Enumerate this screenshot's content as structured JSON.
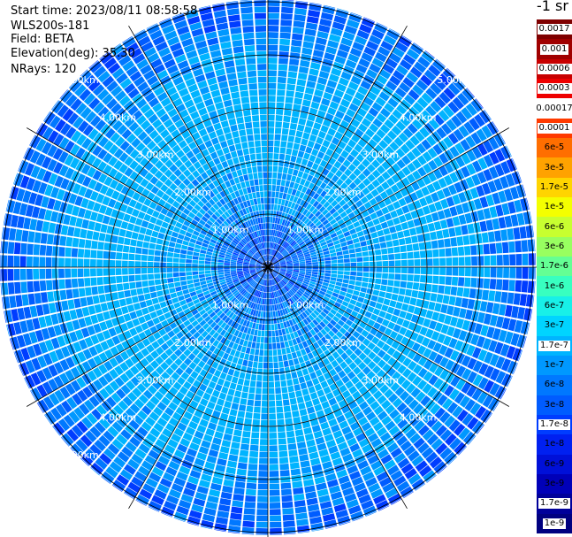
{
  "info": {
    "start_time": "Start time: 2023/08/11 08:58:58",
    "instrument": "WLS200s-181",
    "field": "Field: BETA",
    "elevation": "Elevation(deg): 35.30",
    "nrays": "NRays: 120"
  },
  "units_label": "-1 sr",
  "colors": {
    "ring_line": "#000000",
    "range_label": "#ffffff"
  },
  "legend": [
    {
      "label": "0.0017",
      "color": "#7f0000",
      "label_style": "white"
    },
    {
      "label": "0.001",
      "color": "#a00000",
      "label_style": "white"
    },
    {
      "label": "0.0006",
      "color": "#c80000",
      "label_style": "white"
    },
    {
      "label": "0.0003",
      "color": "#ee0000",
      "label_style": "white"
    },
    {
      "label": "0.00017",
      "color": "#ffffff",
      "label_style": "plain"
    },
    {
      "label": "0.0001",
      "color": "#ff3a00",
      "label_style": "white"
    },
    {
      "label": "6e-5",
      "color": "#ff6e00",
      "label_style": "plain"
    },
    {
      "label": "3e-5",
      "color": "#ffa200",
      "label_style": "plain"
    },
    {
      "label": "1.7e-5",
      "color": "#ffd400",
      "label_style": "plain"
    },
    {
      "label": "1e-5",
      "color": "#f4ff00",
      "label_style": "plain"
    },
    {
      "label": "6e-6",
      "color": "#c8ff30",
      "label_style": "plain"
    },
    {
      "label": "3e-6",
      "color": "#98ff60",
      "label_style": "plain"
    },
    {
      "label": "1.7e-6",
      "color": "#64ff94",
      "label_style": "plain"
    },
    {
      "label": "1e-6",
      "color": "#38ffc0",
      "label_style": "plain"
    },
    {
      "label": "6e-7",
      "color": "#18f0e8",
      "label_style": "plain"
    },
    {
      "label": "3e-7",
      "color": "#00d4ff",
      "label_style": "plain"
    },
    {
      "label": "1.7e-7",
      "color": "#00b4ff",
      "label_style": "white"
    },
    {
      "label": "1e-7",
      "color": "#0098ff",
      "label_style": "plain"
    },
    {
      "label": "6e-8",
      "color": "#0078ff",
      "label_style": "plain"
    },
    {
      "label": "3e-8",
      "color": "#005cff",
      "label_style": "plain"
    },
    {
      "label": "1.7e-8",
      "color": "#003cff",
      "label_style": "white"
    },
    {
      "label": "1e-8",
      "color": "#0020f0",
      "label_style": "plain"
    },
    {
      "label": "6e-9",
      "color": "#0010d8",
      "label_style": "plain"
    },
    {
      "label": "3e-9",
      "color": "#0000b8",
      "label_style": "plain"
    },
    {
      "label": "1.7e-9",
      "color": "#00009a",
      "label_style": "white"
    },
    {
      "label": "1e-9",
      "color": "#000080",
      "label_style": "white"
    }
  ],
  "chart_data": {
    "type": "heatmap",
    "projection": "polar plan position indicator",
    "field": "BETA",
    "units": "-1 sr",
    "elevation_deg": 35.3,
    "n_rays": 120,
    "range_rings_km": [
      1.0,
      2.0,
      3.0,
      4.0,
      5.0
    ],
    "spokes_deg": [
      0,
      30,
      60,
      90,
      120,
      150,
      180,
      210,
      240,
      270,
      300,
      330
    ],
    "range_labels": [
      {
        "text": "1.00km",
        "ring_km": 1.0,
        "azimuth_deg": 315
      },
      {
        "text": "1.00km",
        "ring_km": 1.0,
        "azimuth_deg": 45
      },
      {
        "text": "1.00km",
        "ring_km": 1.0,
        "azimuth_deg": 225
      },
      {
        "text": "1.00km",
        "ring_km": 1.0,
        "azimuth_deg": 135
      },
      {
        "text": "2.00km",
        "ring_km": 2.0,
        "azimuth_deg": 315
      },
      {
        "text": "2.00km",
        "ring_km": 2.0,
        "azimuth_deg": 45
      },
      {
        "text": "2.00km",
        "ring_km": 2.0,
        "azimuth_deg": 225
      },
      {
        "text": "2.00km",
        "ring_km": 2.0,
        "azimuth_deg": 135
      },
      {
        "text": "3.00km",
        "ring_km": 3.0,
        "azimuth_deg": 315
      },
      {
        "text": "3.00km",
        "ring_km": 3.0,
        "azimuth_deg": 45
      },
      {
        "text": "3.00km",
        "ring_km": 3.0,
        "azimuth_deg": 225
      },
      {
        "text": "3.00km",
        "ring_km": 3.0,
        "azimuth_deg": 135
      },
      {
        "text": "4.00km",
        "ring_km": 4.0,
        "azimuth_deg": 315
      },
      {
        "text": "4.00km",
        "ring_km": 4.0,
        "azimuth_deg": 45
      },
      {
        "text": "4.00km",
        "ring_km": 4.0,
        "azimuth_deg": 225
      },
      {
        "text": "4.00km",
        "ring_km": 4.0,
        "azimuth_deg": 135
      },
      {
        "text": "5.00km",
        "ring_km": 5.0,
        "azimuth_deg": 315
      },
      {
        "text": "5.00km",
        "ring_km": 5.0,
        "azimuth_deg": 45
      },
      {
        "text": "5.00km",
        "ring_km": 5.0,
        "azimuth_deg": 225
      }
    ],
    "radial_profile_km": [
      {
        "range_km": 0.0,
        "value": "1.7e-8"
      },
      {
        "range_km": 0.5,
        "value": "3e-8"
      },
      {
        "range_km": 1.0,
        "value": "1e-7"
      },
      {
        "range_km": 2.0,
        "value": "1.7e-7"
      },
      {
        "range_km": 2.8,
        "value": "3e-7"
      },
      {
        "range_km": 3.5,
        "value": "1.7e-7"
      },
      {
        "range_km": 4.5,
        "value": "6e-8"
      },
      {
        "range_km": 5.0,
        "value": "3e-8"
      }
    ],
    "colorbar_scale": "log"
  }
}
